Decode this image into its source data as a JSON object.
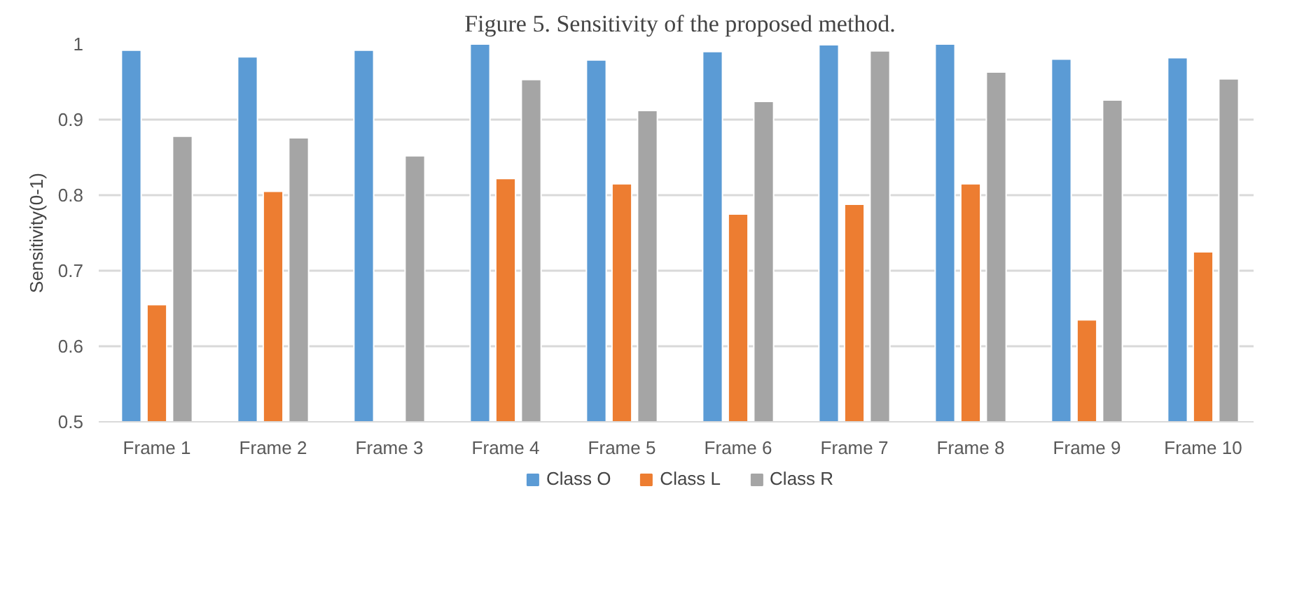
{
  "chart_data": {
    "type": "bar",
    "title": "Figure 5. Sensitivity of the proposed method.",
    "ylabel": "Sensitivity(0-1)",
    "categories": [
      "Frame 1",
      "Frame 2",
      "Frame 3",
      "Frame 4",
      "Frame 5",
      "Frame 6",
      "Frame 7",
      "Frame 8",
      "Frame 9",
      "Frame 10"
    ],
    "series": [
      {
        "name": "Class O",
        "color": "#5b9bd5",
        "values": [
          0.992,
          0.983,
          0.992,
          1.0,
          0.979,
          0.99,
          0.999,
          1.0,
          0.98,
          0.982
        ]
      },
      {
        "name": "Class L",
        "color": "#ed7d31",
        "values": [
          0.655,
          0.805,
          null,
          0.822,
          0.815,
          0.775,
          0.788,
          0.815,
          0.635,
          0.725
        ]
      },
      {
        "name": "Class R",
        "color": "#a5a5a5",
        "values": [
          0.878,
          0.876,
          0.852,
          0.953,
          0.912,
          0.924,
          0.991,
          0.963,
          0.926,
          0.954
        ]
      }
    ],
    "ylim": [
      0.5,
      1
    ],
    "yticks": [
      0.5,
      0.6,
      0.7,
      0.8,
      0.9,
      1
    ],
    "grid": "y",
    "legend": "bottom"
  }
}
